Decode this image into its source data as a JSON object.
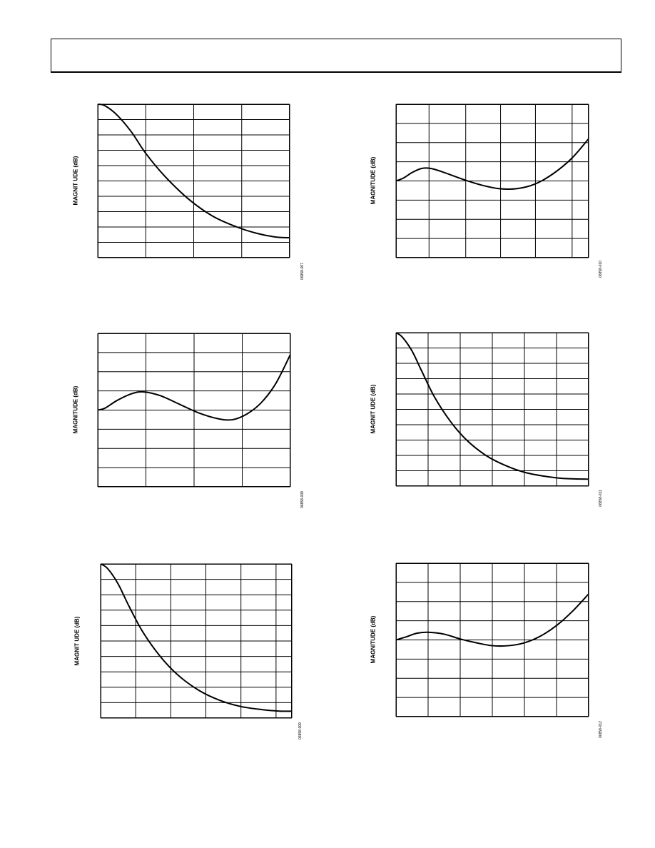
{
  "header": {
    "text": ""
  },
  "chart_data": [
    {
      "type": "line",
      "ylabel": "MAGNIT UDE (dB)",
      "figure_id": "06858-007",
      "x_divisions": [
        0,
        1,
        2,
        3,
        4
      ],
      "y_divisions": 10,
      "xlim": [
        0,
        4
      ],
      "ylim": [
        0,
        10
      ],
      "grid": true,
      "series": [
        {
          "x": [
            0,
            0.15,
            0.4,
            0.7,
            1,
            1.4,
            1.9,
            2.4,
            2.9,
            3.3,
            3.7,
            4
          ],
          "y": [
            10,
            9.9,
            9.3,
            8.2,
            6.8,
            5.3,
            3.8,
            2.7,
            2,
            1.6,
            1.35,
            1.3
          ]
        }
      ]
    },
    {
      "type": "line",
      "ylabel": "MAGNITUDE (dB)",
      "figure_id": "06858-010",
      "x_divisions": [
        0,
        0.9,
        1.9,
        2.85,
        3.8,
        4.8,
        5.25
      ],
      "y_divisions": 8,
      "xlim": [
        0,
        5.25
      ],
      "ylim": [
        0,
        8
      ],
      "grid": true,
      "series": [
        {
          "x": [
            0,
            0.2,
            0.45,
            0.7,
            0.95,
            1.3,
            1.8,
            2.3,
            2.8,
            3.3,
            3.8,
            4.3,
            4.8,
            5.25
          ],
          "y": [
            4,
            4.15,
            4.45,
            4.65,
            4.65,
            4.45,
            4.1,
            3.8,
            3.6,
            3.6,
            3.85,
            4.4,
            5.2,
            6.2
          ]
        }
      ]
    },
    {
      "type": "line",
      "ylabel": "MAGNITUDE (dB)",
      "figure_id": "06858-008",
      "x_divisions": [
        0,
        1,
        2,
        3,
        4
      ],
      "y_divisions": 8,
      "xlim": [
        0,
        4
      ],
      "ylim": [
        0,
        8
      ],
      "grid": true,
      "series": [
        {
          "x": [
            0,
            0.15,
            0.4,
            0.7,
            0.95,
            1.3,
            1.7,
            2.1,
            2.5,
            2.8,
            3.1,
            3.4,
            3.7,
            4
          ],
          "y": [
            4,
            4.1,
            4.5,
            4.85,
            4.95,
            4.75,
            4.3,
            3.85,
            3.55,
            3.5,
            3.8,
            4.4,
            5.4,
            6.9
          ]
        }
      ]
    },
    {
      "type": "line",
      "ylabel": "MAGNIT UDE (dB)",
      "figure_id": "06858-011",
      "x_divisions": [
        0,
        1,
        2,
        3,
        4,
        5,
        6
      ],
      "y_divisions": 10,
      "xlim": [
        0,
        6
      ],
      "ylim": [
        0,
        10
      ],
      "grid": true,
      "series": [
        {
          "x": [
            0,
            0.2,
            0.5,
            0.8,
            1.2,
            1.7,
            2.2,
            2.8,
            3.4,
            4,
            4.6,
            5.2,
            6
          ],
          "y": [
            10,
            9.7,
            8.8,
            7.5,
            5.8,
            4.2,
            3,
            2,
            1.35,
            0.9,
            0.65,
            0.5,
            0.45
          ]
        }
      ]
    },
    {
      "type": "line",
      "ylabel": "MAGNIT UDE (dB)",
      "figure_id": "06858-009",
      "x_divisions": [
        0,
        1,
        2,
        3,
        4,
        5,
        5.45
      ],
      "y_divisions": 10,
      "xlim": [
        0,
        5.45
      ],
      "ylim": [
        0,
        10
      ],
      "grid": true,
      "series": [
        {
          "x": [
            0,
            0.2,
            0.5,
            0.8,
            1.2,
            1.7,
            2.2,
            2.8,
            3.4,
            4,
            4.6,
            5.1,
            5.45
          ],
          "y": [
            10,
            9.7,
            8.7,
            7.3,
            5.6,
            4,
            2.8,
            1.8,
            1.15,
            0.75,
            0.55,
            0.45,
            0.45
          ]
        }
      ]
    },
    {
      "type": "line",
      "ylabel": "MAGNITUDE (dB)",
      "figure_id": "06858-012",
      "x_divisions": [
        0,
        1,
        2,
        3,
        4,
        5,
        6
      ],
      "y_divisions": 8,
      "xlim": [
        0,
        6
      ],
      "ylim": [
        0,
        8
      ],
      "grid": true,
      "series": [
        {
          "x": [
            0,
            0.3,
            0.65,
            1,
            1.5,
            2,
            2.5,
            3,
            3.5,
            4,
            4.5,
            5,
            5.5,
            6
          ],
          "y": [
            4,
            4.15,
            4.35,
            4.4,
            4.3,
            4.05,
            3.85,
            3.7,
            3.7,
            3.85,
            4.2,
            4.75,
            5.5,
            6.4
          ]
        }
      ]
    }
  ]
}
